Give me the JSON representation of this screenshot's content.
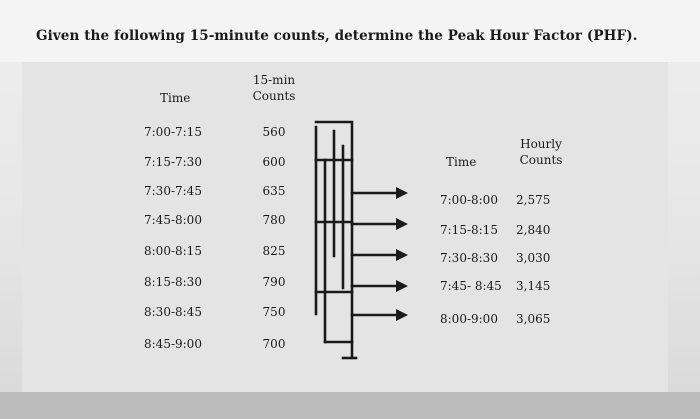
{
  "title": "Given the following 15-minute counts, determine the Peak Hour Factor (PHF).",
  "left_table": {
    "time_header": "Time",
    "count_header_line1": "15-min",
    "count_header_line2": "Counts",
    "rows": [
      {
        "time": "7:00-7:15",
        "count": "560"
      },
      {
        "time": "7:15-7:30",
        "count": "600"
      },
      {
        "time": "7:30-7:45",
        "count": "635"
      },
      {
        "time": "7:45-8:00",
        "count": "780"
      },
      {
        "time": "8:00-8:15",
        "count": "825"
      },
      {
        "time": "8:15-8:30",
        "count": "790"
      },
      {
        "time": "8:30-8:45",
        "count": "750"
      },
      {
        "time": "8:45-9:00",
        "count": "700"
      }
    ]
  },
  "right_table": {
    "time_header": "Time",
    "count_header_line1": "Hourly",
    "count_header_line2": "Counts",
    "rows": [
      {
        "time": "7:00-8:00",
        "count": "2,575"
      },
      {
        "time": "7:15-8:15",
        "count": "2,840"
      },
      {
        "time": "7:30-8:30",
        "count": "3,030"
      },
      {
        "time": "7:45- 8:45",
        "count": "3,145"
      },
      {
        "time": "8:00-9:00",
        "count": "3,065"
      }
    ]
  },
  "colors": {
    "ink": "#1a1a1a",
    "paper": "#e4e4e4",
    "background": "#c9c9c9"
  }
}
